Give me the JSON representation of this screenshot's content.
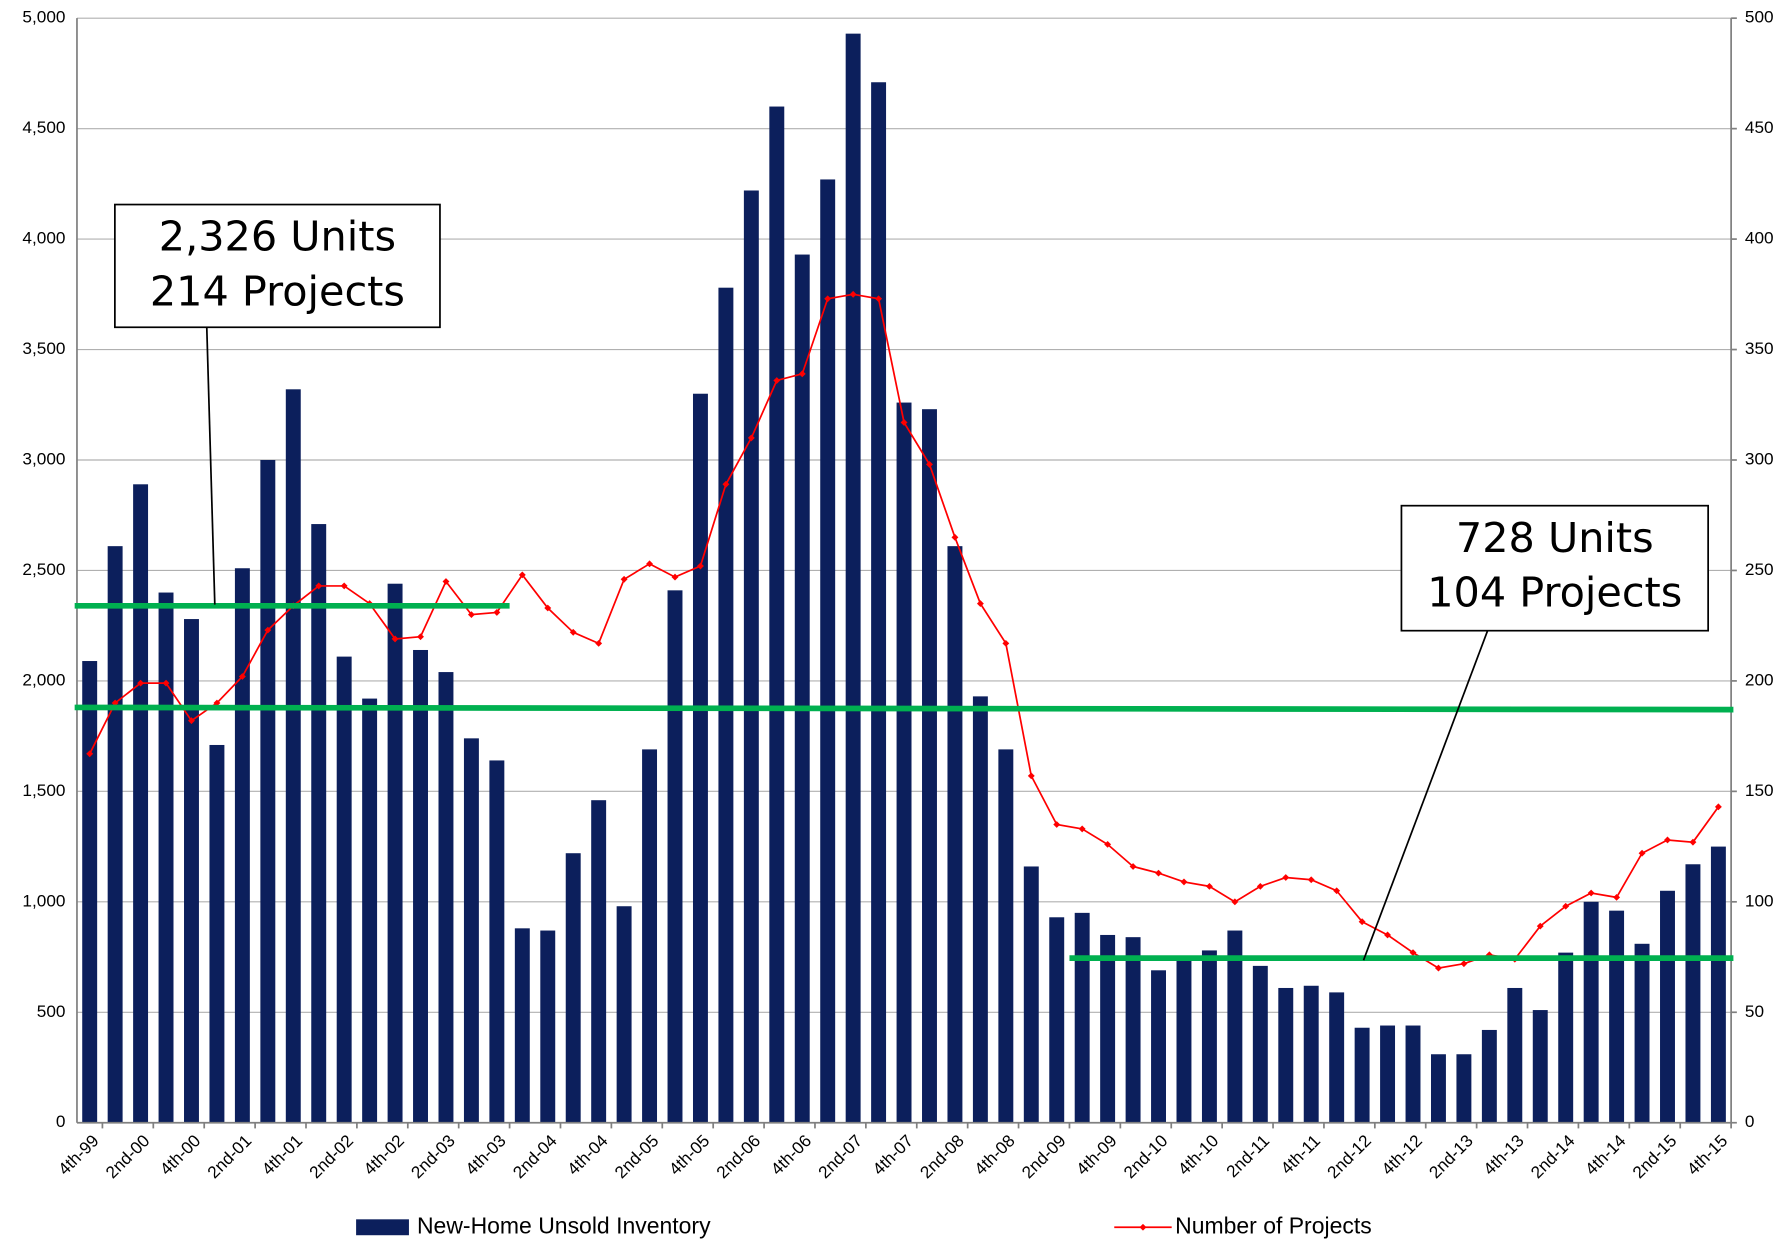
{
  "chart_data": {
    "type": "bar",
    "categories": [
      "4th-99",
      null,
      "2nd-00",
      null,
      "4th-00",
      null,
      "2nd-01",
      null,
      "4th-01",
      null,
      "2nd-02",
      null,
      "4th-02",
      null,
      "2nd-03",
      null,
      "4th-03",
      null,
      "2nd-04",
      null,
      "4th-04",
      null,
      "2nd-05",
      null,
      "4th-05",
      null,
      "2nd-06",
      null,
      "4th-06",
      null,
      "2nd-07",
      null,
      "4th-07",
      null,
      "2nd-08",
      null,
      "4th-08",
      null,
      "2nd-09",
      null,
      "4th-09",
      null,
      "2nd-10",
      null,
      "4th-10",
      null,
      "2nd-11",
      null,
      "4th-11",
      null,
      "2nd-12",
      null,
      "4th-12",
      null,
      "2nd-13",
      null,
      "4th-13",
      null,
      "2nd-14",
      null,
      "4th-14",
      null,
      "2nd-15",
      null,
      "4th-15"
    ],
    "series": [
      {
        "name": "New-Home Unsold Inventory",
        "type": "bar",
        "color": "#0c1f5c",
        "values": [
          2090,
          2610,
          2890,
          2400,
          2280,
          1710,
          2510,
          3000,
          3320,
          2710,
          2110,
          1920,
          2440,
          2140,
          2040,
          1740,
          1640,
          880,
          870,
          1220,
          1460,
          980,
          1690,
          2410,
          3300,
          3780,
          4220,
          4600,
          3930,
          4270,
          4930,
          4710,
          3260,
          3230,
          2610,
          1930,
          1690,
          1160,
          930,
          950,
          850,
          840,
          690,
          740,
          780,
          870,
          710,
          610,
          620,
          590,
          430,
          440,
          440,
          310,
          310,
          420,
          610,
          510,
          770,
          1000,
          960,
          810,
          1050,
          1170,
          1250
        ]
      },
      {
        "name": "Number of Projects",
        "type": "line",
        "color": "#ff0000",
        "axis": "y2",
        "values": [
          167,
          190,
          199,
          199,
          182,
          190,
          202,
          223,
          234,
          243,
          243,
          235,
          219,
          220,
          245,
          230,
          231,
          248,
          233,
          222,
          217,
          246,
          253,
          247,
          252,
          289,
          310,
          336,
          339,
          373,
          375,
          373,
          317,
          298,
          265,
          235,
          217,
          157,
          135,
          133,
          126,
          116,
          113,
          109,
          107,
          100,
          107,
          111,
          110,
          105,
          91,
          85,
          77,
          70,
          72,
          76,
          74,
          89,
          98,
          104,
          102,
          122,
          128,
          127,
          143
        ]
      }
    ],
    "ylim": [
      0,
      5000
    ],
    "yticks": [
      0,
      500,
      {
        "value": 1000,
        "label": "1,000"
      },
      {
        "value": 1500,
        "label": "1,500"
      },
      {
        "value": 2000,
        "label": "2,000"
      },
      {
        "value": 2500,
        "label": "2,500"
      },
      {
        "value": 3000,
        "label": "3,000"
      },
      {
        "value": 3500,
        "label": "3,500"
      },
      {
        "value": 4000,
        "label": "4,000"
      },
      {
        "value": 4500,
        "label": "4,500"
      },
      {
        "value": 5000,
        "label": "5,000"
      }
    ],
    "y2lim": [
      0,
      500
    ],
    "y2ticks": [
      0,
      50,
      100,
      150,
      200,
      250,
      300,
      350,
      400,
      450,
      500
    ],
    "grid": true,
    "legend": "bottom",
    "reference_lines": [
      {
        "color": "#00b050",
        "values": [
          2340,
          2340
        ],
        "span": [
          0,
          16
        ]
      },
      {
        "color": "#00b050",
        "values": [
          1880,
          1870
        ],
        "span": [
          0,
          64
        ]
      },
      {
        "color": "#00b050",
        "values": [
          745,
          745
        ],
        "span": [
          39,
          64
        ]
      }
    ],
    "annotations": [
      {
        "lines": [
          "2,326 Units",
          "214 Projects"
        ]
      },
      {
        "lines": [
          "728 Units",
          "104 Projects"
        ]
      }
    ]
  }
}
